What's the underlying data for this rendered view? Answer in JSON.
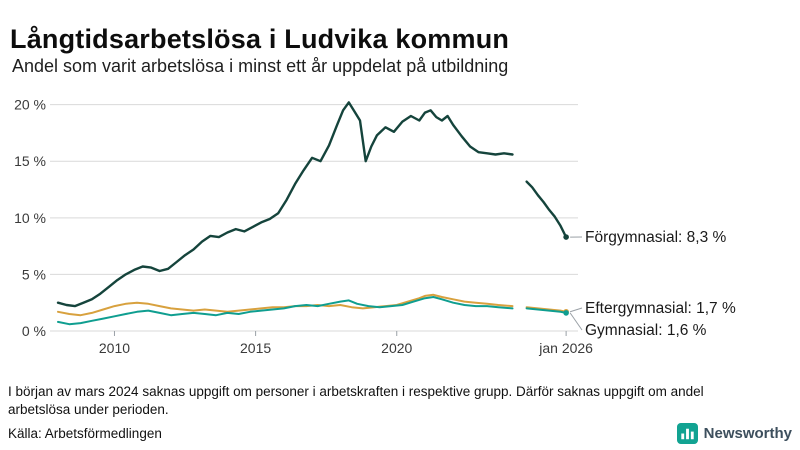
{
  "chart_data": {
    "type": "line",
    "title": "Långtidsarbetslösa i Ludvika kommun",
    "subtitle": "Andel som varit arbetslösa i minst ett år uppdelat på utbildning",
    "xlabel": "",
    "ylabel": "",
    "xlim": [
      2008,
      2026.35
    ],
    "ylim": [
      0,
      20.5
    ],
    "grid": true,
    "legend_position": "right-of-line-ends",
    "yticks": [
      0,
      5,
      10,
      15,
      20
    ],
    "ytick_labels": [
      "0 %",
      "5 %",
      "10 %",
      "15 %",
      "20 %"
    ],
    "xticks": [
      2010,
      2015,
      2020,
      2026
    ],
    "xtick_labels": [
      "2010",
      "2015",
      "2020",
      "jan 2026"
    ],
    "data_gap_period": "mars 2024",
    "series": [
      {
        "id": "eftergymnasial",
        "name": "Eftergymnasial",
        "color": "#d8a13e",
        "label": "Eftergymnasial: 1,7 %",
        "segments": [
          {
            "x": [
              2008.0,
              2008.4,
              2008.8,
              2009.2,
              2009.6,
              2010.0,
              2010.4,
              2010.8,
              2011.2,
              2011.6,
              2012.0,
              2012.4,
              2012.8,
              2013.2,
              2013.6,
              2014.0,
              2014.4,
              2014.8,
              2015.2,
              2015.6,
              2016.0,
              2016.4,
              2016.8,
              2017.2,
              2017.6,
              2018.0,
              2018.4,
              2018.8,
              2019.2,
              2019.6,
              2020.0,
              2020.4,
              2020.8,
              2021.0,
              2021.3,
              2021.6,
              2022.0,
              2022.4,
              2022.8,
              2023.2,
              2023.6,
              2024.1
            ],
            "y": [
              1.7,
              1.5,
              1.4,
              1.6,
              1.9,
              2.2,
              2.4,
              2.5,
              2.4,
              2.2,
              2.0,
              1.9,
              1.8,
              1.9,
              1.8,
              1.7,
              1.8,
              1.9,
              2.0,
              2.1,
              2.1,
              2.2,
              2.2,
              2.3,
              2.2,
              2.3,
              2.1,
              2.0,
              2.1,
              2.2,
              2.3,
              2.6,
              2.9,
              3.1,
              3.2,
              3.0,
              2.8,
              2.6,
              2.5,
              2.4,
              2.3,
              2.2
            ]
          },
          {
            "x": [
              2024.6,
              2025.0,
              2025.4,
              2025.8,
              2026.0
            ],
            "y": [
              2.1,
              2.0,
              1.9,
              1.8,
              1.7
            ]
          }
        ]
      },
      {
        "id": "gymnasial",
        "name": "Gymnasial",
        "color": "#0f9e90",
        "label": "Gymnasial: 1,6 %",
        "segments": [
          {
            "x": [
              2008.0,
              2008.4,
              2008.8,
              2009.2,
              2009.6,
              2010.0,
              2010.4,
              2010.8,
              2011.2,
              2011.6,
              2012.0,
              2012.4,
              2012.8,
              2013.2,
              2013.6,
              2014.0,
              2014.4,
              2014.8,
              2015.2,
              2015.6,
              2016.0,
              2016.4,
              2016.8,
              2017.2,
              2017.6,
              2018.0,
              2018.3,
              2018.6,
              2019.0,
              2019.4,
              2019.8,
              2020.2,
              2020.6,
              2021.0,
              2021.3,
              2021.6,
              2022.0,
              2022.4,
              2022.8,
              2023.2,
              2023.6,
              2024.1
            ],
            "y": [
              0.8,
              0.6,
              0.7,
              0.9,
              1.1,
              1.3,
              1.5,
              1.7,
              1.8,
              1.6,
              1.4,
              1.5,
              1.6,
              1.5,
              1.4,
              1.6,
              1.5,
              1.7,
              1.8,
              1.9,
              2.0,
              2.2,
              2.3,
              2.2,
              2.4,
              2.6,
              2.7,
              2.4,
              2.2,
              2.1,
              2.2,
              2.3,
              2.6,
              2.9,
              3.0,
              2.8,
              2.5,
              2.3,
              2.2,
              2.2,
              2.1,
              2.0
            ]
          },
          {
            "x": [
              2024.6,
              2025.0,
              2025.4,
              2025.8,
              2026.0
            ],
            "y": [
              2.0,
              1.9,
              1.8,
              1.7,
              1.6
            ]
          }
        ]
      },
      {
        "id": "forgymnasial",
        "name": "Förgymnasial",
        "color": "#15443c",
        "label": "Förgymnasial: 8,3 %",
        "segments": [
          {
            "x": [
              2008.0,
              2008.3,
              2008.6,
              2008.9,
              2009.2,
              2009.5,
              2009.8,
              2010.1,
              2010.4,
              2010.7,
              2011.0,
              2011.3,
              2011.6,
              2011.9,
              2012.2,
              2012.5,
              2012.8,
              2013.1,
              2013.4,
              2013.7,
              2014.0,
              2014.3,
              2014.6,
              2014.9,
              2015.2,
              2015.5,
              2015.8,
              2016.1,
              2016.4,
              2016.7,
              2017.0,
              2017.3,
              2017.6,
              2017.9,
              2018.1,
              2018.3,
              2018.5,
              2018.7,
              2018.9,
              2019.1,
              2019.3,
              2019.6,
              2019.9,
              2020.2,
              2020.5,
              2020.8,
              2021.0,
              2021.2,
              2021.4,
              2021.6,
              2021.8,
              2022.0,
              2022.3,
              2022.6,
              2022.9,
              2023.2,
              2023.5,
              2023.8,
              2024.1
            ],
            "y": [
              2.5,
              2.3,
              2.2,
              2.5,
              2.8,
              3.3,
              3.9,
              4.5,
              5.0,
              5.4,
              5.7,
              5.6,
              5.3,
              5.5,
              6.1,
              6.7,
              7.2,
              7.9,
              8.4,
              8.3,
              8.7,
              9.0,
              8.8,
              9.2,
              9.6,
              9.9,
              10.4,
              11.6,
              13.0,
              14.2,
              15.3,
              15.0,
              16.4,
              18.3,
              19.5,
              20.2,
              19.4,
              18.6,
              15.0,
              16.3,
              17.3,
              18.0,
              17.6,
              18.5,
              19.0,
              18.6,
              19.3,
              19.5,
              18.9,
              18.6,
              19.0,
              18.2,
              17.2,
              16.3,
              15.8,
              15.7,
              15.6,
              15.7,
              15.6
            ]
          },
          {
            "x": [
              2024.6,
              2024.8,
              2025.0,
              2025.2,
              2025.4,
              2025.6,
              2025.8,
              2026.0
            ],
            "y": [
              13.2,
              12.7,
              12.0,
              11.4,
              10.7,
              10.1,
              9.3,
              8.3
            ]
          }
        ]
      }
    ]
  },
  "footnote": "I början av mars 2024 saknas uppgift om personer i arbetskraften i respektive grupp. Därför saknas uppgift om andel arbetslösa under perioden.",
  "source": "Källa: Arbetsförmedlingen",
  "logo": {
    "text": "Newsworthy"
  }
}
